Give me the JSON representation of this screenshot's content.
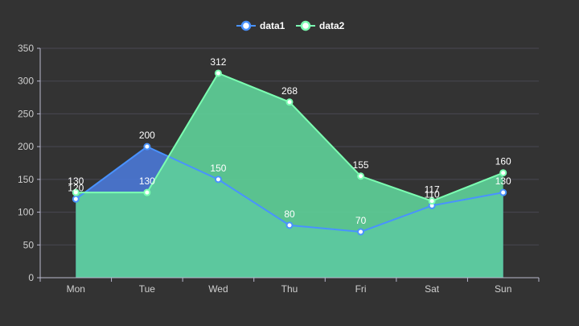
{
  "chart_data": {
    "type": "area",
    "title": "",
    "xlabel": "",
    "ylabel": "",
    "categories": [
      "Mon",
      "Tue",
      "Wed",
      "Thu",
      "Fri",
      "Sat",
      "Sun"
    ],
    "ylim": [
      0,
      350
    ],
    "yticks": [
      0,
      50,
      100,
      150,
      200,
      250,
      300,
      350
    ],
    "grid": true,
    "legend_position": "top-center",
    "background_color": "#333333",
    "series": [
      {
        "name": "data1",
        "values": [
          120,
          200,
          150,
          80,
          70,
          110,
          130
        ],
        "line_color": "#4992ff",
        "area_color": "#4a78d6",
        "label_color": "#ffffff"
      },
      {
        "name": "data2",
        "values": [
          130,
          130,
          312,
          268,
          155,
          117,
          160
        ],
        "line_color": "#7cffb2",
        "area_color": "#5ed199",
        "label_color": "#ffffff"
      }
    ]
  }
}
